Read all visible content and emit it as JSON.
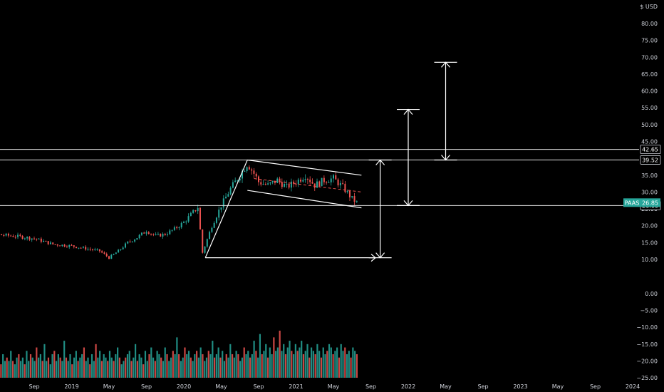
{
  "header": {
    "currency": "USD",
    "currency_prefix": "$"
  },
  "chart_data": {
    "type": "candlestick",
    "symbol": "PAAS",
    "last_price": 26.85,
    "price_axis": {
      "ticks": [
        80,
        75,
        70,
        65,
        60,
        55,
        50,
        45,
        40,
        35,
        30,
        25,
        20,
        15,
        10
      ],
      "tick_labels": [
        "80.00",
        "75.00",
        "70.00",
        "65.00",
        "60.00",
        "55.00",
        "50.00",
        "45.00",
        "40.00",
        "35.00",
        "30.00",
        "25.00",
        "20.00",
        "15.00",
        "10.00"
      ]
    },
    "volume_axis": {
      "ticks": [
        0,
        -5,
        -10,
        -15,
        -20,
        -25
      ],
      "tick_labels": [
        "0.00",
        "−5.00",
        "−10.00",
        "−15.00",
        "−20.00",
        "−25.00"
      ]
    },
    "time_axis": {
      "labels": [
        "Sep",
        "2019",
        "May",
        "Sep",
        "2020",
        "May",
        "Sep",
        "2021",
        "May",
        "Sep",
        "2022",
        "May",
        "Sep",
        "2023",
        "May",
        "Sep",
        "2024"
      ],
      "months_offset": [
        8,
        12,
        16,
        20,
        24,
        28,
        32,
        36,
        40,
        44,
        48,
        52,
        56,
        60,
        64,
        68,
        72
      ]
    },
    "horizontal_levels": [
      {
        "value": 42.65,
        "label": "42.65"
      },
      {
        "value": 39.52,
        "label": "39.52"
      },
      {
        "value": 26.0,
        "label": "26.00"
      }
    ],
    "price_badge": {
      "symbol": "PAAS",
      "value": "26.85"
    },
    "candles_close_path": [
      [
        0,
        17.8
      ],
      [
        3,
        17.6
      ],
      [
        6,
        16.9
      ],
      [
        8,
        16.2
      ],
      [
        10,
        14.5
      ],
      [
        12,
        14.0
      ],
      [
        14,
        13.0
      ],
      [
        15,
        12.5
      ],
      [
        16,
        10.5
      ],
      [
        17,
        12.5
      ],
      [
        18,
        15.0
      ],
      [
        19,
        16.5
      ],
      [
        20,
        18.5
      ],
      [
        21,
        17.0
      ],
      [
        22,
        17.5
      ],
      [
        23,
        19.0
      ],
      [
        24,
        21.0
      ],
      [
        25,
        24.0
      ],
      [
        25.5,
        25.5
      ],
      [
        26,
        12.0
      ],
      [
        26.5,
        16.0
      ],
      [
        27,
        20.0
      ],
      [
        28,
        26.0
      ],
      [
        29,
        31.0
      ],
      [
        30,
        35.0
      ],
      [
        30.8,
        38.5
      ],
      [
        31.5,
        35.5
      ],
      [
        32,
        33.0
      ],
      [
        33,
        32.0
      ],
      [
        34,
        33.5
      ],
      [
        35,
        31.5
      ],
      [
        36,
        33.0
      ],
      [
        37,
        35.0
      ],
      [
        38,
        32.0
      ],
      [
        39,
        33.5
      ],
      [
        40,
        34.0
      ],
      [
        41,
        31.5
      ],
      [
        42,
        28.0
      ],
      [
        42.5,
        26.85
      ]
    ],
    "volume_bars": [
      -19,
      -21,
      -20,
      -21,
      -19,
      -20,
      -21,
      -19,
      -20,
      -18,
      -20,
      -21,
      -17,
      -20,
      -19,
      -21,
      -18,
      -20,
      -20,
      -16,
      -19,
      -21,
      -18,
      -20,
      -19,
      -20,
      -17,
      -20,
      -21,
      -19,
      -18,
      -20,
      -19,
      -21,
      -17,
      -20,
      -18,
      -19,
      -20,
      -16,
      -19,
      -18,
      -20,
      -15,
      -20,
      -19,
      -21,
      -18,
      -17,
      -20,
      -18,
      -19,
      -20,
      -14,
      -19,
      -20,
      -18,
      -21,
      -19,
      -17,
      -20,
      -19,
      -18,
      -16,
      -20,
      -19,
      -21,
      -18,
      -20,
      -15,
      -19,
      -17,
      -20,
      -18,
      -19,
      -20,
      -17,
      -19,
      -20,
      -18,
      -16,
      -19,
      -21,
      -20,
      -19,
      -18,
      -17,
      -20,
      -19,
      -15,
      -20,
      -18,
      -19,
      -21,
      -17,
      -20,
      -18,
      -16,
      -19,
      -20,
      -17,
      -18,
      -19,
      -20,
      -16,
      -18,
      -20,
      -19,
      -17,
      -18,
      -13,
      -18,
      -20,
      -19,
      -16,
      -18,
      -17,
      -19,
      -20,
      -18,
      -17,
      -19,
      -16,
      -18,
      -20,
      -19,
      -17,
      -18,
      -14,
      -19,
      -18,
      -16,
      -19,
      -17,
      -20,
      -18,
      -19,
      -15,
      -18,
      -19,
      -17,
      -18,
      -20,
      -19,
      -16,
      -18,
      -17,
      -19,
      -18,
      -14,
      -17,
      -19,
      -12,
      -18,
      -17,
      -15,
      -19,
      -16,
      -18,
      -13,
      -17,
      -16,
      -11,
      -17,
      -15,
      -18,
      -16,
      -14,
      -17,
      -18,
      -15,
      -17,
      -16,
      -14,
      -18,
      -17,
      -15,
      -19,
      -16,
      -17,
      -18,
      -15,
      -17,
      -19,
      -16,
      -18,
      -17,
      -15,
      -16,
      -18,
      -17,
      -16,
      -19,
      -15,
      -17,
      -16,
      -18,
      -17,
      -19,
      -16,
      -17,
      -18
    ],
    "patterns": {
      "flagpole": [
        [
          26.3,
          10.5
        ],
        [
          30.8,
          39.5
        ]
      ],
      "channel_upper": [
        [
          30.8,
          39.5
        ],
        [
          43,
          35.0
        ]
      ],
      "channel_lower": [
        [
          30.8,
          30.5
        ],
        [
          43,
          25.3
        ]
      ],
      "flagpole_base": [
        [
          26.3,
          10.5
        ],
        [
          44.5,
          10.5
        ]
      ],
      "target_projections": [
        {
          "x": 45,
          "from": 10.5,
          "to": 39.5
        },
        {
          "x": 48,
          "from": 26.0,
          "to": 54.5
        },
        {
          "x": 52,
          "from": 39.5,
          "to": 68.5
        }
      ]
    }
  }
}
